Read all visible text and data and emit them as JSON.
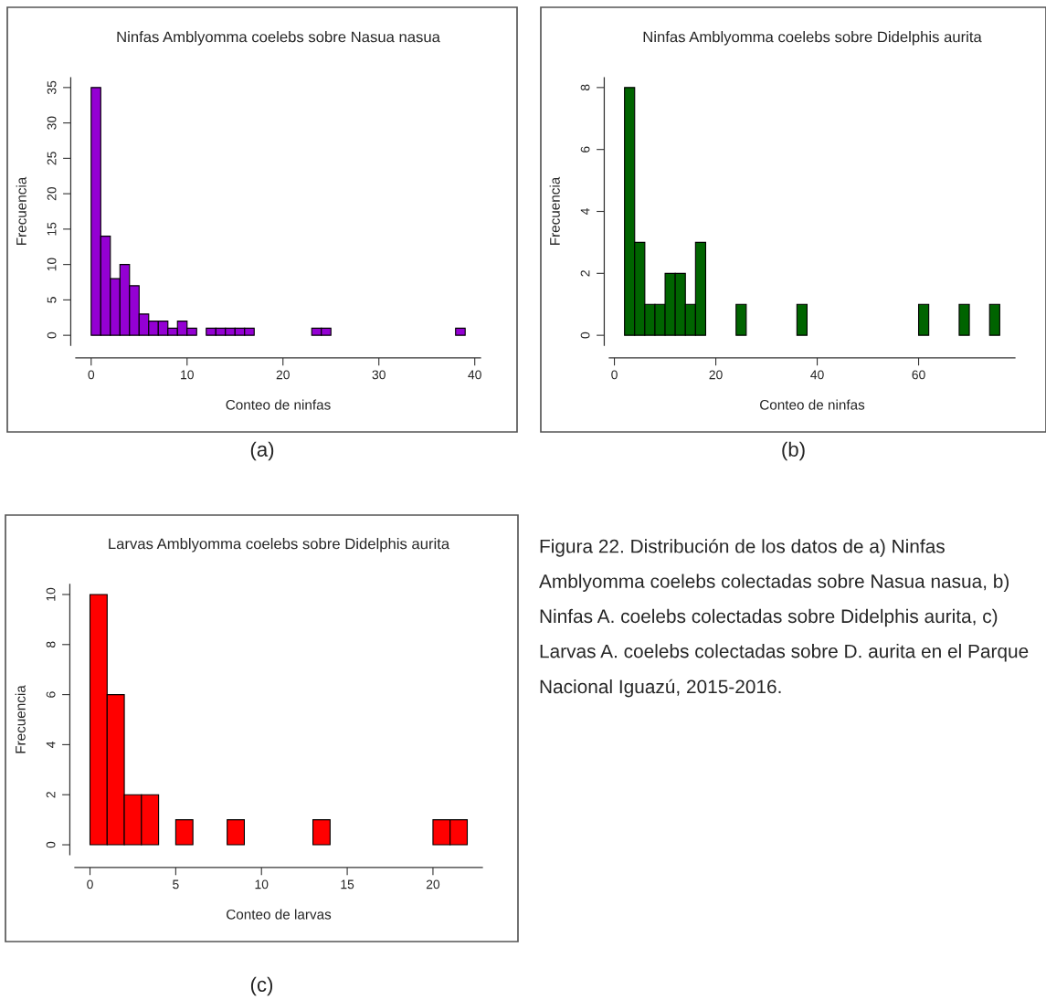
{
  "chart_data": [
    {
      "type": "histogram",
      "title": "Ninfas Amblyomma coelebs sobre Nasua nasua",
      "xlabel": "Conteo de ninfas",
      "ylabel": "Frecuencia",
      "color": "#9400d3",
      "bins": [
        0,
        1,
        2,
        3,
        4,
        5,
        6,
        7,
        8,
        9,
        10,
        11,
        12,
        13,
        14,
        15,
        16,
        17,
        18,
        19,
        20,
        21,
        22,
        23,
        24,
        25,
        26,
        27,
        28,
        29,
        30,
        31,
        32,
        33,
        34,
        35,
        36,
        37,
        38,
        39
      ],
      "values": [
        35,
        14,
        8,
        10,
        7,
        3,
        2,
        2,
        1,
        2,
        1,
        0,
        1,
        1,
        1,
        1,
        1,
        0,
        0,
        0,
        0,
        0,
        0,
        1,
        1,
        0,
        0,
        0,
        0,
        0,
        0,
        0,
        0,
        0,
        0,
        0,
        0,
        0,
        1
      ],
      "xlim": [
        -1.6,
        40.6
      ],
      "ylim": [
        -1.4,
        36.4
      ],
      "xticks": [
        0,
        10,
        20,
        30,
        40
      ],
      "yticks": [
        0,
        5,
        10,
        15,
        20,
        25,
        30,
        35
      ],
      "grid": false,
      "legend": false,
      "annotations": [
        "(a)"
      ]
    },
    {
      "type": "histogram",
      "title": "Ninfas Amblyomma coelebs sobre Didelphis aurita",
      "xlabel": "Conteo de ninfas",
      "ylabel": "Frecuencia",
      "color": "#006400",
      "bins": [
        2,
        4,
        6,
        8,
        10,
        12,
        14,
        16,
        18,
        20,
        22,
        24,
        26,
        28,
        30,
        32,
        34,
        36,
        38,
        40,
        42,
        44,
        46,
        48,
        50,
        52,
        54,
        56,
        58,
        60,
        62,
        64,
        66,
        68,
        70,
        72,
        74,
        76
      ],
      "values": [
        8,
        3,
        1,
        1,
        2,
        2,
        1,
        3,
        0,
        0,
        0,
        1,
        0,
        0,
        0,
        0,
        0,
        1,
        0,
        0,
        0,
        0,
        0,
        0,
        0,
        0,
        0,
        0,
        0,
        1,
        0,
        0,
        0,
        1,
        0,
        0,
        1
      ],
      "xlim": [
        -1,
        79
      ],
      "ylim": [
        -0.32,
        8.32
      ],
      "xticks": [
        0,
        20,
        40,
        60
      ],
      "yticks": [
        0,
        2,
        4,
        6,
        8
      ],
      "grid": false,
      "legend": false,
      "annotations": [
        "(b)"
      ]
    },
    {
      "type": "histogram",
      "title": "Larvas Amblyomma coelebs sobre Didelphis aurita",
      "xlabel": "Conteo de larvas",
      "ylabel": "Frecuencia",
      "color": "#ff0000",
      "bins": [
        0,
        1,
        2,
        3,
        4,
        5,
        6,
        7,
        8,
        9,
        10,
        11,
        12,
        13,
        14,
        15,
        16,
        17,
        18,
        19,
        20,
        21,
        22
      ],
      "values": [
        10,
        6,
        2,
        2,
        0,
        1,
        0,
        0,
        1,
        0,
        0,
        0,
        0,
        1,
        0,
        0,
        0,
        0,
        0,
        0,
        1,
        1
      ],
      "xlim": [
        -0.88,
        22.88
      ],
      "ylim": [
        -0.4,
        10.4
      ],
      "xticks": [
        0,
        5,
        10,
        15,
        20
      ],
      "yticks": [
        0,
        2,
        4,
        6,
        8,
        10
      ],
      "grid": false,
      "legend": false,
      "annotations": [
        "(c)",
        "Figura 22. Distribución de los datos de a) Ninfas Amblyomma coelebs colectadas sobre Nasua nasua, b) Ninfas A. coelebs colectadas sobre Didelphis aurita, c) Larvas A. coelebs colectadas sobre D. aurita en el Parque Nacional Iguazú, 2015-2016."
      ]
    }
  ]
}
